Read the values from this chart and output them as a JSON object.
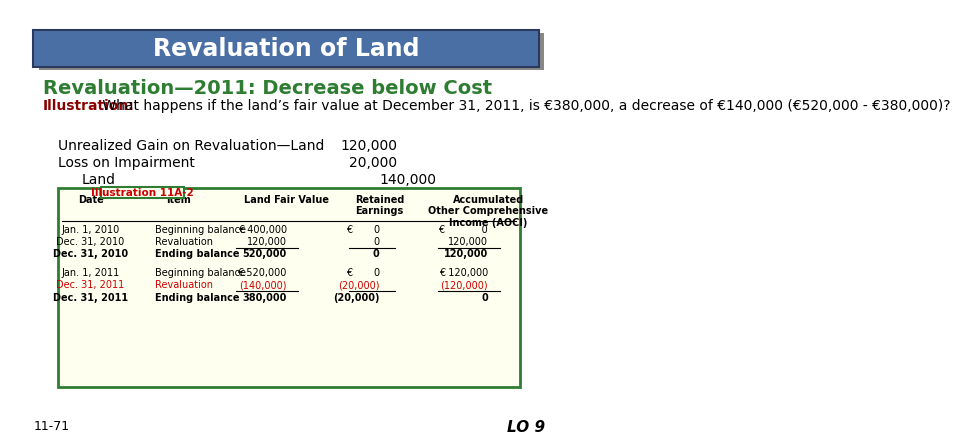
{
  "title": "Revaluation of Land",
  "title_bg": "#4a6fa5",
  "title_color": "white",
  "subtitle": "Revaluation—2011: Decrease below Cost",
  "subtitle_color": "#2e7d32",
  "illustration_label": "Illustration:",
  "illustration_label_color": "#8b0000",
  "illustration_text": " What happens if the land’s fair value at December 31, 2011, is €380,000, a decrease of €140,000 (€520,000 - €380,000)?",
  "journal_entries": [
    {
      "label": "Unrealized Gain on Revaluation—Land",
      "value": "120,000",
      "indent": 0
    },
    {
      "label": "Loss on Impairment",
      "value": "20,000",
      "indent": 0
    },
    {
      "label": "Land",
      "value": "140,000",
      "indent": 1
    }
  ],
  "table_label": "Illustration 11A-2",
  "table_label_color": "#cc0000",
  "table_border_color": "#2e7d32",
  "table_bg": "#fffff0",
  "table_header": [
    "Date",
    "Item",
    "Land Fair Value",
    "Retained\nEarnings",
    "Accumulated\nOther Comprehensive\nIncome (AOCI)"
  ],
  "table_rows": [
    {
      "date": "Jan. 1, 2010",
      "item": "Beginning balance",
      "lfv": "€ 400,000",
      "re": "€       0",
      "aoci": "€            0",
      "style": "normal"
    },
    {
      "date": "Dec. 31, 2010",
      "item": "Revaluation",
      "lfv": "120,000",
      "re": "0",
      "aoci": "120,000",
      "style": "underline"
    },
    {
      "date": "Dec. 31, 2010",
      "item": "Ending balance",
      "lfv": "520,000",
      "re": "0",
      "aoci": "120,000",
      "style": "bold"
    },
    {
      "date": "",
      "item": "",
      "lfv": "",
      "re": "",
      "aoci": "",
      "style": "spacer"
    },
    {
      "date": "Jan. 1, 2011",
      "item": "Beginning balance",
      "lfv": "€ 520,000",
      "re": "€       0",
      "aoci": "€ 120,000",
      "style": "normal"
    },
    {
      "date": "Dec. 31, 2011",
      "item": "Revaluation",
      "lfv": "(140,000)",
      "re": "(20,000)",
      "aoci": "(120,000)",
      "style": "red_underline"
    },
    {
      "date": "Dec. 31, 2011",
      "item": "Ending balance",
      "lfv": "380,000",
      "re": "(20,000)",
      "aoci": "0",
      "style": "bold"
    }
  ],
  "footer_left": "11-71",
  "footer_right": "LO 9"
}
